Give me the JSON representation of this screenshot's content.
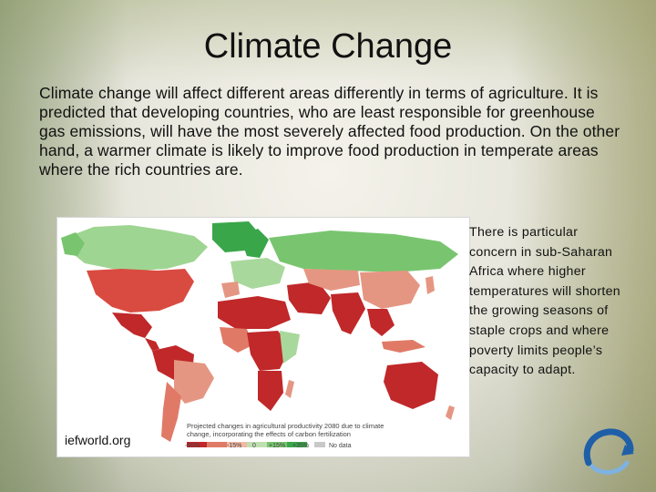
{
  "slide": {
    "title": "Climate Change",
    "paragraph": "Climate change will affect different areas differently in terms of agriculture. It is predicted that developing countries, who are least responsible for greenhouse gas emissions, will have the most severely affected food production.  On the other hand, a warmer climate is likely to improve food production in temperate areas where the rich countries are.",
    "side_note": "There is particular concern in sub-Saharan Africa where higher temperatures will shorten the growing seasons of staple crops and where poverty limits people’s capacity to adapt."
  },
  "map": {
    "credit": "iefworld.org",
    "legend_title": "Projected changes in agricultural productivity 2080 due to climate change, incorporating the effects of carbon fertilization",
    "legend_labels": [
      "-50%",
      "-15%",
      "0",
      "+15%",
      "+35%",
      "No data"
    ],
    "legend_colors": [
      "#c0282a",
      "#e07a66",
      "#f2b8a4",
      "#bfe0b2",
      "#79c56f",
      "#3aa64a"
    ],
    "no_data_color": "#c8c8c8"
  },
  "colors": {
    "severe_decline": "#c0282a",
    "moderate_decline": "#e59682",
    "slight_gain": "#a9d89c",
    "strong_gain": "#4caf50"
  },
  "icons": [
    "swirl-logo-icon"
  ]
}
